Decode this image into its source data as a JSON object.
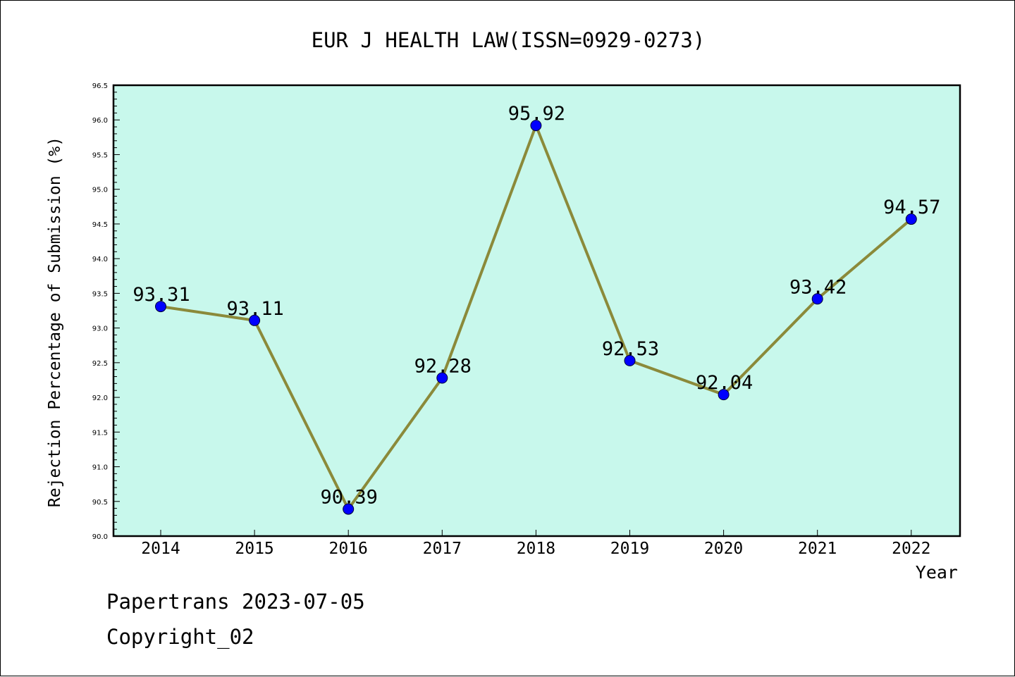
{
  "chart_data": {
    "type": "line",
    "title": "EUR J HEALTH LAW(ISSN=0929-0273)",
    "xlabel": "Year",
    "ylabel": "Rejection Percentage of Submission (%)",
    "categories": [
      "2014",
      "2015",
      "2016",
      "2017",
      "2018",
      "2019",
      "2020",
      "2021",
      "2022"
    ],
    "values": [
      93.31,
      93.11,
      90.39,
      92.28,
      95.92,
      92.53,
      92.04,
      93.42,
      94.57
    ],
    "data_labels": [
      "93.31",
      "93.11",
      "90.39",
      "92.28",
      "95.92",
      "92.53",
      "92.04",
      "93.42",
      "94.57"
    ],
    "ylim": [
      90.0,
      96.5
    ],
    "yticks": [
      "90.0",
      "90.5",
      "91.0",
      "91.5",
      "92.0",
      "92.5",
      "93.0",
      "93.5",
      "94.0",
      "94.5",
      "95.0",
      "95.5",
      "96.0",
      "96.5"
    ],
    "grid": false,
    "colors": {
      "line": "#8b8a3a",
      "marker": "#0000ff",
      "plot_background": "#c8f8ec"
    }
  },
  "footer": {
    "source": "Papertrans 2023-07-05",
    "copyright": "Copyright_02"
  }
}
